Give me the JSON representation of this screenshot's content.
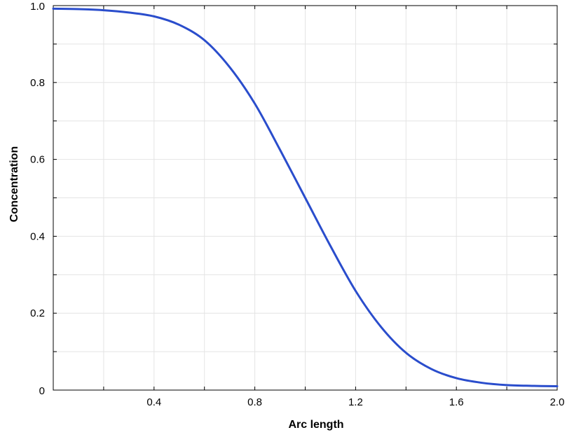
{
  "chart_data": {
    "type": "line",
    "xlabel": "Arc length",
    "ylabel": "Concentration",
    "xlim": [
      0.0,
      2.0
    ],
    "ylim": [
      0.0,
      1.0
    ],
    "grid": true,
    "x_ticks": [
      {
        "value": 0.4,
        "label": "0.4"
      },
      {
        "value": 0.8,
        "label": "0.8"
      },
      {
        "value": 1.2,
        "label": "1.2"
      },
      {
        "value": 1.6,
        "label": "1.6"
      },
      {
        "value": 2.0,
        "label": "2.0"
      }
    ],
    "y_ticks": [
      {
        "value": 0.0,
        "label": "0"
      },
      {
        "value": 0.2,
        "label": "0.2"
      },
      {
        "value": 0.4,
        "label": "0.4"
      },
      {
        "value": 0.6,
        "label": "0.6"
      },
      {
        "value": 0.8,
        "label": "0.8"
      },
      {
        "value": 1.0,
        "label": "1.0"
      }
    ],
    "series": [
      {
        "color": "#2a4dcc",
        "x": [
          0.0,
          0.1,
          0.2,
          0.3,
          0.4,
          0.5,
          0.6,
          0.7,
          0.8,
          0.9,
          1.0,
          1.1,
          1.2,
          1.3,
          1.4,
          1.5,
          1.6,
          1.7,
          1.8,
          1.9,
          2.0
        ],
        "y": [
          0.992,
          0.991,
          0.988,
          0.982,
          0.972,
          0.95,
          0.91,
          0.84,
          0.745,
          0.625,
          0.5,
          0.375,
          0.258,
          0.165,
          0.097,
          0.055,
          0.031,
          0.019,
          0.013,
          0.011,
          0.01
        ]
      }
    ]
  }
}
